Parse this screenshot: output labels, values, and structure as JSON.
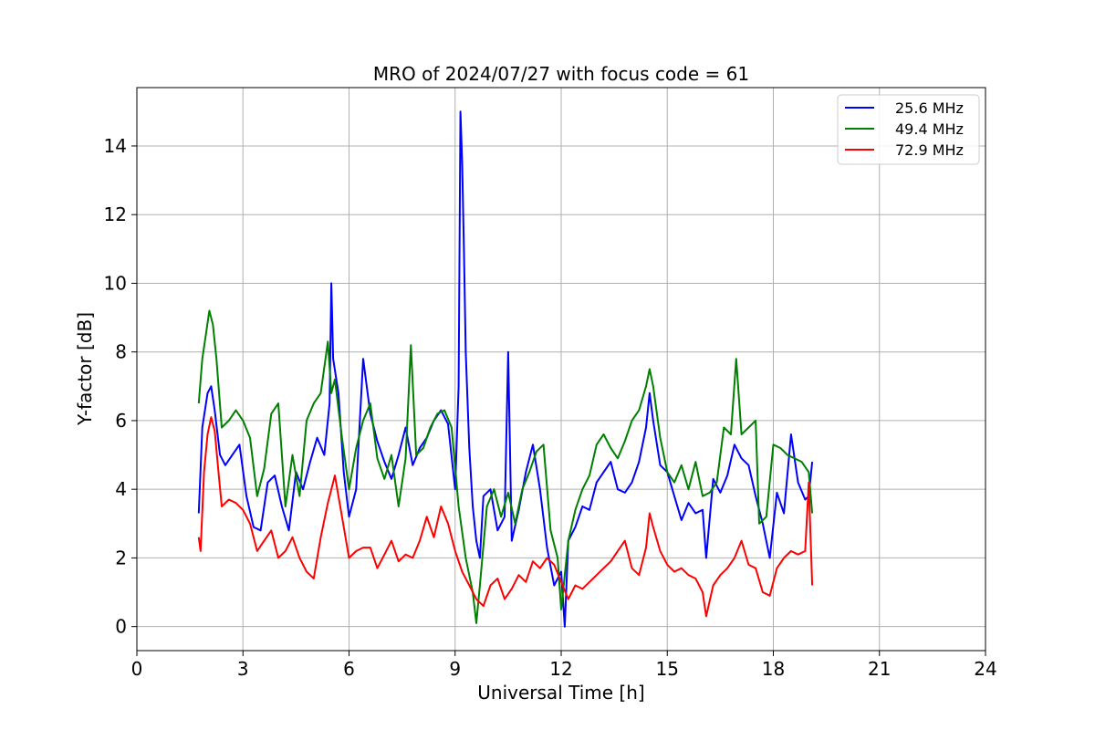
{
  "chart_data": {
    "type": "line",
    "title": "MRO of 2024/07/27 with focus code = 61",
    "xlabel": "Universal Time [h]",
    "ylabel": "Y-factor [dB]",
    "xlim": [
      0,
      24
    ],
    "ylim": [
      -0.7,
      15.7
    ],
    "xticks": [
      0,
      3,
      6,
      9,
      12,
      15,
      18,
      21,
      24
    ],
    "yticks": [
      0,
      2,
      4,
      6,
      8,
      10,
      12,
      14
    ],
    "grid": true,
    "legend_position": "top-right",
    "series": [
      {
        "name": "25.6 MHz",
        "color": "#0000ff",
        "x": [
          1.75,
          1.85,
          2.0,
          2.1,
          2.2,
          2.35,
          2.5,
          2.7,
          2.9,
          3.1,
          3.3,
          3.5,
          3.7,
          3.9,
          4.1,
          4.3,
          4.5,
          4.7,
          4.9,
          5.1,
          5.3,
          5.45,
          5.5,
          5.55,
          5.7,
          5.85,
          6.0,
          6.2,
          6.4,
          6.6,
          6.8,
          7.0,
          7.2,
          7.4,
          7.6,
          7.8,
          8.0,
          8.2,
          8.4,
          8.6,
          8.8,
          9.0,
          9.1,
          9.15,
          9.2,
          9.25,
          9.3,
          9.4,
          9.5,
          9.6,
          9.7,
          9.8,
          10.0,
          10.2,
          10.4,
          10.5,
          10.6,
          10.8,
          11.0,
          11.2,
          11.4,
          11.6,
          11.8,
          12.0,
          12.1,
          12.2,
          12.4,
          12.6,
          12.8,
          13.0,
          13.2,
          13.4,
          13.6,
          13.8,
          14.0,
          14.2,
          14.4,
          14.5,
          14.6,
          14.8,
          15.0,
          15.2,
          15.4,
          15.6,
          15.8,
          16.0,
          16.1,
          16.3,
          16.5,
          16.7,
          16.9,
          17.1,
          17.3,
          17.5,
          17.7,
          17.9,
          18.1,
          18.3,
          18.5,
          18.7,
          18.9,
          19.0,
          19.1
        ],
        "y": [
          3.3,
          5.8,
          6.8,
          7.0,
          6.3,
          5.0,
          4.7,
          5.0,
          5.3,
          3.8,
          2.9,
          2.8,
          4.2,
          4.4,
          3.5,
          2.8,
          4.5,
          4.0,
          4.8,
          5.5,
          5.0,
          6.5,
          10.0,
          7.8,
          6.8,
          4.5,
          3.2,
          4.0,
          7.8,
          6.2,
          5.4,
          4.8,
          4.3,
          5.0,
          5.8,
          4.7,
          5.2,
          5.5,
          6.0,
          6.3,
          5.9,
          4.0,
          7.0,
          15.0,
          13.5,
          11.0,
          8.0,
          5.2,
          3.5,
          2.5,
          2.0,
          3.8,
          4.0,
          2.8,
          3.2,
          8.0,
          2.5,
          3.4,
          4.5,
          5.3,
          4.0,
          2.3,
          1.2,
          1.6,
          0.0,
          2.5,
          2.9,
          3.5,
          3.4,
          4.2,
          4.5,
          4.8,
          4.0,
          3.9,
          4.2,
          4.8,
          5.8,
          6.8,
          6.0,
          4.7,
          4.5,
          3.8,
          3.1,
          3.6,
          3.3,
          3.4,
          2.0,
          4.3,
          3.9,
          4.4,
          5.3,
          4.9,
          4.7,
          3.8,
          3.0,
          2.0,
          3.9,
          3.3,
          5.6,
          4.2,
          3.7,
          3.8,
          4.8
        ]
      },
      {
        "name": "49.4 MHz",
        "color": "#008000",
        "x": [
          1.75,
          1.85,
          1.95,
          2.05,
          2.15,
          2.25,
          2.4,
          2.6,
          2.8,
          3.0,
          3.2,
          3.4,
          3.6,
          3.8,
          4.0,
          4.2,
          4.4,
          4.6,
          4.8,
          5.0,
          5.2,
          5.4,
          5.5,
          5.6,
          5.8,
          6.0,
          6.2,
          6.4,
          6.6,
          6.8,
          7.0,
          7.2,
          7.4,
          7.6,
          7.75,
          7.9,
          8.1,
          8.3,
          8.5,
          8.7,
          8.9,
          9.1,
          9.3,
          9.5,
          9.6,
          9.7,
          9.9,
          10.1,
          10.3,
          10.5,
          10.7,
          10.9,
          11.1,
          11.3,
          11.5,
          11.7,
          11.9,
          12.0,
          12.2,
          12.4,
          12.6,
          12.8,
          13.0,
          13.2,
          13.4,
          13.6,
          13.8,
          14.0,
          14.2,
          14.4,
          14.5,
          14.6,
          14.8,
          15.0,
          15.2,
          15.4,
          15.6,
          15.8,
          16.0,
          16.2,
          16.4,
          16.6,
          16.8,
          16.95,
          17.1,
          17.3,
          17.5,
          17.6,
          17.8,
          18.0,
          18.2,
          18.4,
          18.6,
          18.8,
          19.0,
          19.1
        ],
        "y": [
          6.5,
          7.8,
          8.5,
          9.2,
          8.8,
          7.8,
          5.8,
          6.0,
          6.3,
          6.0,
          5.5,
          3.8,
          4.6,
          6.2,
          6.5,
          3.5,
          5.0,
          3.8,
          6.0,
          6.5,
          6.8,
          8.3,
          6.8,
          7.2,
          5.5,
          4.0,
          5.2,
          6.0,
          6.5,
          4.9,
          4.3,
          5.0,
          3.5,
          4.9,
          8.2,
          5.0,
          5.2,
          5.8,
          6.2,
          6.3,
          5.8,
          3.5,
          2.0,
          1.0,
          0.1,
          1.2,
          3.5,
          4.0,
          3.2,
          3.9,
          3.0,
          4.0,
          4.5,
          5.1,
          5.3,
          2.8,
          2.0,
          0.5,
          2.5,
          3.4,
          4.0,
          4.4,
          5.3,
          5.6,
          5.2,
          4.9,
          5.4,
          6.0,
          6.3,
          7.0,
          7.5,
          7.0,
          5.5,
          4.5,
          4.2,
          4.7,
          4.0,
          4.8,
          3.8,
          3.9,
          4.2,
          5.8,
          5.6,
          7.8,
          5.6,
          5.8,
          6.0,
          3.0,
          3.2,
          5.3,
          5.2,
          5.0,
          4.9,
          4.8,
          4.5,
          3.3
        ]
      },
      {
        "name": "72.9 MHz",
        "color": "#ff0000",
        "x": [
          1.75,
          1.8,
          1.9,
          2.0,
          2.1,
          2.2,
          2.3,
          2.4,
          2.6,
          2.8,
          3.0,
          3.2,
          3.4,
          3.6,
          3.8,
          4.0,
          4.2,
          4.4,
          4.6,
          4.8,
          5.0,
          5.2,
          5.4,
          5.6,
          5.8,
          6.0,
          6.2,
          6.4,
          6.6,
          6.8,
          7.0,
          7.2,
          7.4,
          7.6,
          7.8,
          8.0,
          8.2,
          8.4,
          8.6,
          8.8,
          9.0,
          9.2,
          9.4,
          9.6,
          9.8,
          10.0,
          10.2,
          10.4,
          10.6,
          10.8,
          11.0,
          11.2,
          11.4,
          11.6,
          11.8,
          12.0,
          12.2,
          12.4,
          12.6,
          12.8,
          13.0,
          13.2,
          13.4,
          13.6,
          13.8,
          14.0,
          14.2,
          14.4,
          14.5,
          14.6,
          14.8,
          15.0,
          15.2,
          15.4,
          15.6,
          15.8,
          16.0,
          16.1,
          16.3,
          16.5,
          16.7,
          16.9,
          17.1,
          17.3,
          17.5,
          17.7,
          17.9,
          18.1,
          18.3,
          18.5,
          18.7,
          18.9,
          19.0,
          19.1
        ],
        "y": [
          2.6,
          2.2,
          4.5,
          5.6,
          6.1,
          5.7,
          4.6,
          3.5,
          3.7,
          3.6,
          3.4,
          3.0,
          2.2,
          2.5,
          2.8,
          2.0,
          2.2,
          2.6,
          2.0,
          1.6,
          1.4,
          2.6,
          3.6,
          4.4,
          3.2,
          2.0,
          2.2,
          2.3,
          2.3,
          1.7,
          2.1,
          2.5,
          1.9,
          2.1,
          2.0,
          2.5,
          3.2,
          2.6,
          3.5,
          3.0,
          2.2,
          1.6,
          1.2,
          0.8,
          0.6,
          1.2,
          1.4,
          0.8,
          1.1,
          1.5,
          1.3,
          1.9,
          1.7,
          2.0,
          1.8,
          1.3,
          0.8,
          1.2,
          1.1,
          1.3,
          1.5,
          1.7,
          1.9,
          2.2,
          2.5,
          1.7,
          1.5,
          2.3,
          3.3,
          2.9,
          2.2,
          1.8,
          1.6,
          1.7,
          1.5,
          1.4,
          1.0,
          0.3,
          1.2,
          1.5,
          1.7,
          2.0,
          2.5,
          1.8,
          1.7,
          1.0,
          0.9,
          1.7,
          2.0,
          2.2,
          2.1,
          2.2,
          4.2,
          1.2
        ]
      }
    ]
  }
}
